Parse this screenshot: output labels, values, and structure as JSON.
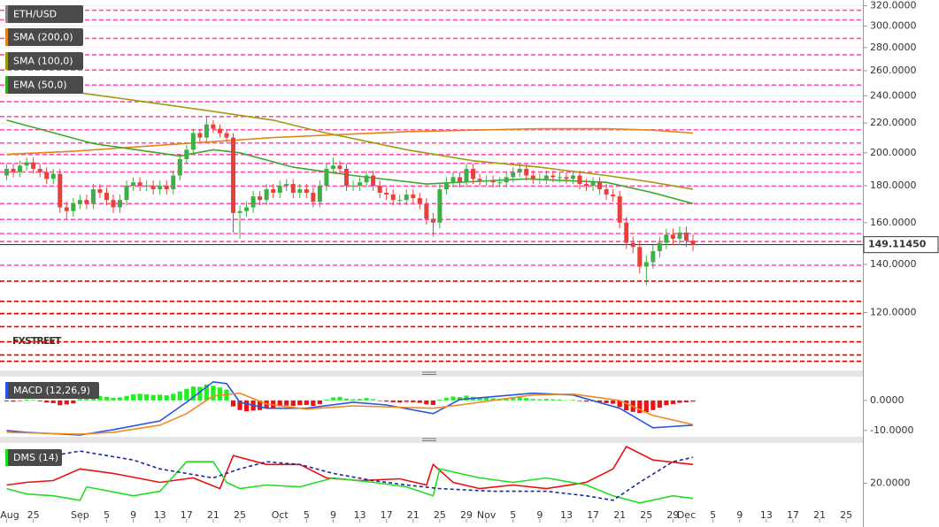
{
  "chart_data": [
    {
      "type": "candlestick",
      "title": "ETH/USD",
      "log_scale": true,
      "grid": true,
      "up_color": "#3cb043",
      "down_color": "#e8403a",
      "watermark": "FXSTREET",
      "ylim": [
        100,
        326
      ],
      "yticks": [
        {
          "value": 320,
          "label": "320.0000"
        },
        {
          "value": 300,
          "label": "300.0000"
        },
        {
          "value": 280,
          "label": "280.0000"
        },
        {
          "value": 260,
          "label": "260.0000"
        },
        {
          "value": 240,
          "label": "240.0000"
        },
        {
          "value": 220,
          "label": "220.0000"
        },
        {
          "value": 200,
          "label": "200.0000"
        },
        {
          "value": 180,
          "label": "180.0000"
        },
        {
          "value": 160,
          "label": "160.0000"
        },
        {
          "value": 140,
          "label": "140.0000"
        },
        {
          "value": 120,
          "label": "120.0000"
        }
      ],
      "open": [
        186,
        190,
        188,
        192,
        194,
        190,
        188,
        184,
        187,
        168,
        166,
        170,
        172,
        170,
        178,
        176,
        172,
        168,
        172,
        180,
        182,
        180,
        180,
        178,
        180,
        178,
        186,
        196,
        202,
        213,
        210,
        219,
        216,
        213,
        210,
        165,
        166,
        168,
        174,
        172,
        178,
        176,
        180,
        181,
        176,
        178,
        176,
        171,
        180,
        190,
        192,
        190,
        180,
        180,
        182,
        186,
        180,
        176,
        175,
        172,
        172,
        175,
        173,
        170,
        162,
        160,
        178,
        182,
        185,
        182,
        190,
        184,
        183,
        183,
        182,
        182,
        185,
        188,
        190,
        186,
        184,
        184,
        186,
        185,
        185,
        184,
        186,
        181,
        180,
        182,
        178,
        175,
        174,
        160,
        150,
        148,
        139,
        141,
        146,
        150,
        154,
        152,
        155,
        151
      ],
      "high": [
        193,
        193,
        195,
        197,
        197,
        193,
        191,
        190,
        190,
        171,
        173,
        175,
        175,
        181,
        181,
        179,
        175,
        175,
        183,
        185,
        185,
        183,
        183,
        183,
        183,
        189,
        199,
        205,
        216,
        216,
        225,
        222,
        219,
        216,
        213,
        169,
        171,
        177,
        177,
        181,
        181,
        183,
        184,
        184,
        181,
        181,
        179,
        183,
        193,
        197,
        195,
        193,
        183,
        185,
        189,
        189,
        183,
        179,
        178,
        175,
        178,
        178,
        176,
        173,
        165,
        181,
        185,
        188,
        188,
        193,
        193,
        187,
        186,
        186,
        185,
        188,
        191,
        193,
        193,
        189,
        187,
        189,
        189,
        188,
        188,
        189,
        189,
        184,
        185,
        185,
        181,
        178,
        177,
        163,
        153,
        151,
        144,
        149,
        153,
        157,
        157,
        158,
        158,
        154
      ],
      "low": [
        183,
        185,
        185,
        189,
        187,
        185,
        181,
        181,
        165,
        162,
        163,
        167,
        167,
        167,
        173,
        169,
        165,
        165,
        169,
        177,
        177,
        177,
        175,
        175,
        175,
        175,
        183,
        193,
        199,
        207,
        207,
        213,
        210,
        207,
        155,
        152,
        163,
        165,
        169,
        169,
        173,
        173,
        177,
        173,
        173,
        173,
        168,
        168,
        177,
        187,
        187,
        177,
        177,
        177,
        179,
        177,
        173,
        172,
        169,
        169,
        169,
        170,
        167,
        159,
        153,
        157,
        175,
        179,
        179,
        179,
        181,
        180,
        180,
        179,
        179,
        179,
        182,
        185,
        183,
        181,
        181,
        181,
        182,
        182,
        181,
        181,
        178,
        177,
        177,
        175,
        172,
        171,
        157,
        147,
        145,
        136,
        131,
        138,
        143,
        147,
        149,
        149,
        148,
        146
      ],
      "close": [
        190,
        188,
        192,
        194,
        190,
        188,
        184,
        187,
        168,
        166,
        170,
        172,
        170,
        178,
        176,
        172,
        168,
        172,
        180,
        182,
        180,
        180,
        178,
        180,
        178,
        186,
        196,
        202,
        213,
        210,
        219,
        216,
        213,
        210,
        165,
        166,
        168,
        174,
        172,
        178,
        176,
        180,
        181,
        176,
        178,
        176,
        171,
        180,
        190,
        192,
        190,
        180,
        180,
        182,
        186,
        180,
        176,
        175,
        172,
        172,
        175,
        173,
        170,
        162,
        160,
        178,
        182,
        185,
        182,
        190,
        184,
        183,
        183,
        182,
        182,
        185,
        188,
        190,
        186,
        184,
        184,
        186,
        185,
        185,
        184,
        186,
        181,
        180,
        182,
        178,
        175,
        174,
        160,
        150,
        148,
        139,
        141,
        146,
        150,
        154,
        152,
        155,
        151,
        149.1145
      ],
      "last_price": {
        "value": 149.1145,
        "label": "149.11450"
      },
      "resistance_color": "#ff4fa8",
      "resistance_levels": [
        315.5,
        305.9,
        288.3,
        273.6,
        260.6,
        248.4,
        235.5,
        224.6,
        215.3,
        206.4,
        198.9,
        193.4,
        188.1,
        179.8,
        170.0,
        161.6,
        154.5,
        150.6,
        139.6
      ],
      "support_color": "#e00000",
      "support_levels": [
        132.7,
        124.4,
        119.6,
        114.7,
        109.3,
        104.8,
        102.7
      ],
      "series": [
        {
          "name": "SMA (200,0)",
          "color": "#e0861e",
          "x": [
            0,
            10,
            20,
            30,
            40,
            50,
            60,
            70,
            80,
            90,
            97,
            103
          ],
          "values": [
            199,
            201,
            204,
            207,
            210,
            212,
            214,
            215,
            216,
            216,
            215,
            213
          ]
        },
        {
          "name": "SMA (100,0)",
          "color": "#9c9c10",
          "x": [
            0,
            10,
            20,
            30,
            40,
            47,
            60,
            70,
            80,
            90,
            97,
            103
          ],
          "values": [
            248,
            243,
            236,
            229,
            222,
            214,
            202,
            195,
            191,
            186,
            182,
            178
          ]
        },
        {
          "name": "EMA (50,0)",
          "color": "#3aa82a",
          "x": [
            0,
            13,
            26,
            31,
            35,
            43,
            52,
            63,
            78,
            90,
            97,
            103
          ],
          "values": [
            222,
            206,
            198,
            202,
            200,
            191,
            186,
            181,
            184,
            182,
            176,
            170
          ]
        }
      ]
    },
    {
      "type": "macd",
      "title": "MACD (12,26,9)",
      "ylim": [
        -11.8,
        7.6
      ],
      "yticks": [
        {
          "value": 0,
          "label": "0.0000"
        },
        {
          "value": -10,
          "label": "-10.0000"
        }
      ],
      "positive_color": "#22ee22",
      "negative_color": "#ee1111",
      "histogram": [
        -0.3,
        -0.4,
        -0.2,
        0.3,
        0.2,
        -0.3,
        -0.7,
        -0.9,
        -1.6,
        -1.3,
        -1.0,
        0.5,
        0.8,
        1.3,
        1.5,
        1.2,
        0.9,
        1.0,
        1.5,
        2.0,
        2.2,
        2.0,
        1.8,
        1.9,
        1.7,
        2.2,
        3.0,
        3.8,
        4.6,
        4.5,
        5.3,
        4.9,
        4.3,
        3.6,
        -2.0,
        -3.2,
        -3.6,
        -3.4,
        -3.2,
        -2.6,
        -2.4,
        -2.0,
        -1.7,
        -1.8,
        -1.6,
        -1.5,
        -1.8,
        -1.2,
        0.3,
        1.0,
        1.2,
        0.6,
        0.4,
        0.5,
        0.8,
        0.4,
        -0.2,
        -0.4,
        -0.6,
        -0.7,
        -0.5,
        -0.6,
        -0.8,
        -1.3,
        -1.5,
        0.3,
        0.9,
        1.3,
        1.1,
        1.6,
        1.2,
        1.0,
        0.9,
        0.7,
        0.6,
        0.8,
        1.0,
        1.1,
        0.8,
        0.5,
        0.4,
        0.5,
        0.4,
        0.3,
        0.1,
        0.2,
        -0.2,
        -0.4,
        -0.3,
        -0.6,
        -0.9,
        -1.1,
        -2.2,
        -3.3,
        -3.8,
        -4.2,
        -3.9,
        -3.2,
        -2.4,
        -1.6,
        -1.2,
        -0.8,
        -0.6,
        -0.4
      ],
      "series": [
        {
          "color": "#2a55e0",
          "x": [
            0,
            3,
            11,
            16,
            23,
            27,
            31,
            33,
            35,
            39,
            45,
            52,
            57,
            64,
            68,
            79,
            85,
            92,
            97,
            103
          ],
          "values": [
            -10.0,
            -10.6,
            -11.5,
            -9.7,
            -6.8,
            -0.6,
            6.2,
            5.6,
            -0.6,
            -2.6,
            -2.6,
            -0.6,
            -1.5,
            -4.4,
            0.3,
            2.4,
            1.8,
            -2.6,
            -9.1,
            -8.2
          ]
        },
        {
          "color": "#f08a24",
          "x": [
            0,
            11,
            16,
            23,
            27,
            31,
            35,
            39,
            45,
            52,
            64,
            68,
            79,
            85,
            92,
            97,
            103
          ],
          "values": [
            -10.6,
            -11.2,
            -10.6,
            -8.2,
            -4.4,
            1.5,
            2.4,
            -1.2,
            -2.9,
            -1.8,
            -2.6,
            -1.5,
            1.8,
            2.1,
            0.0,
            -5.0,
            -8.0
          ]
        }
      ]
    },
    {
      "type": "line",
      "title": "DMS (14)",
      "ylim": [
        0,
        42
      ],
      "yticks": [
        {
          "value": 20,
          "label": "20.0000"
        }
      ],
      "xlim": [
        -1,
        128.5
      ],
      "xticks": [
        {
          "value": 0,
          "label": "Aug"
        },
        {
          "value": 4,
          "label": "25"
        },
        {
          "value": 11,
          "label": "Sep"
        },
        {
          "value": 15,
          "label": "5"
        },
        {
          "value": 19,
          "label": "9"
        },
        {
          "value": 23,
          "label": "13"
        },
        {
          "value": 27,
          "label": "17"
        },
        {
          "value": 31,
          "label": "21"
        },
        {
          "value": 35,
          "label": "25"
        },
        {
          "value": 41,
          "label": "Oct"
        },
        {
          "value": 45,
          "label": "5"
        },
        {
          "value": 49,
          "label": "9"
        },
        {
          "value": 53,
          "label": "13"
        },
        {
          "value": 57,
          "label": "17"
        },
        {
          "value": 61,
          "label": "21"
        },
        {
          "value": 65,
          "label": "25"
        },
        {
          "value": 69,
          "label": "29"
        },
        {
          "value": 72,
          "label": "Nov"
        },
        {
          "value": 76,
          "label": "5"
        },
        {
          "value": 80,
          "label": "9"
        },
        {
          "value": 84,
          "label": "13"
        },
        {
          "value": 88,
          "label": "17"
        },
        {
          "value": 92,
          "label": "21"
        },
        {
          "value": 96,
          "label": "25"
        },
        {
          "value": 100,
          "label": "29"
        },
        {
          "value": 102,
          "label": "Dec"
        },
        {
          "value": 106,
          "label": "5"
        },
        {
          "value": 110,
          "label": "9"
        },
        {
          "value": 114,
          "label": "13"
        },
        {
          "value": 118,
          "label": "17"
        },
        {
          "value": 122,
          "label": "21"
        },
        {
          "value": 126,
          "label": "25"
        }
      ],
      "series": [
        {
          "color": "#e81010",
          "x": [
            0,
            3,
            7,
            11,
            16,
            23,
            28,
            32,
            34,
            39,
            44,
            48,
            53,
            59,
            63,
            64,
            67,
            71,
            76,
            81,
            87,
            91,
            93,
            97,
            103
          ],
          "values": [
            19,
            20.5,
            21.5,
            28,
            25.5,
            20.5,
            23,
            17,
            35.5,
            30.5,
            30.5,
            23,
            21.5,
            22.5,
            19,
            30.5,
            20.5,
            17,
            19,
            17,
            20.5,
            28,
            40.5,
            33,
            30.5
          ]
        },
        {
          "color": "#22dd22",
          "x": [
            0,
            3,
            7,
            11,
            12,
            19,
            23,
            27,
            31,
            33,
            35,
            39,
            44,
            49,
            55,
            60,
            64,
            65,
            71,
            76,
            81,
            87,
            91,
            95,
            100,
            103
          ],
          "values": [
            17,
            14,
            13,
            10.5,
            18,
            13,
            15.5,
            32,
            32,
            20.5,
            17,
            19,
            18,
            23,
            20.5,
            18,
            13,
            28,
            23,
            20.5,
            23,
            19,
            13,
            9,
            13,
            11.5
          ]
        },
        {
          "color": "#1a2a9a",
          "dash": true,
          "x": [
            0,
            3,
            7,
            11,
            15,
            19,
            23,
            27,
            31,
            35,
            39,
            44,
            49,
            55,
            60,
            65,
            73,
            81,
            87,
            91,
            95,
            100,
            103
          ],
          "values": [
            33,
            35.5,
            35.5,
            38,
            35.5,
            33,
            28,
            25.5,
            23,
            28,
            32,
            30.5,
            25.5,
            21.5,
            19,
            17,
            15.5,
            15.5,
            13,
            10.5,
            20.5,
            32,
            34.5
          ]
        }
      ]
    }
  ]
}
